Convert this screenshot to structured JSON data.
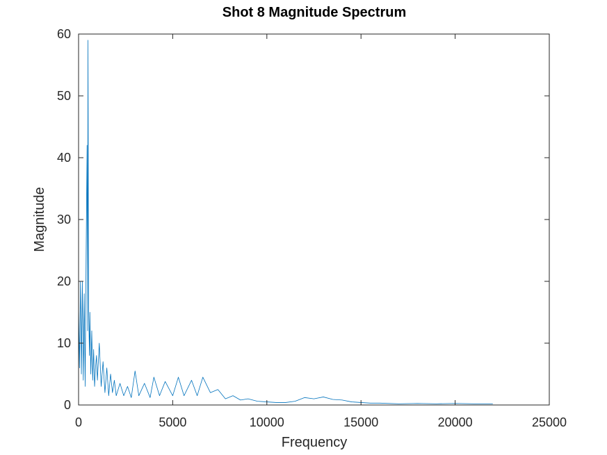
{
  "chart_data": {
    "type": "line",
    "title": "Shot 8 Magnitude Spectrum",
    "xlabel": "Frequency",
    "ylabel": "Magnitude",
    "xlim": [
      0,
      25000
    ],
    "ylim": [
      0,
      60
    ],
    "xticks": [
      0,
      5000,
      10000,
      15000,
      20000,
      25000
    ],
    "yticks": [
      0,
      10,
      20,
      30,
      40,
      50,
      60
    ],
    "grid": false,
    "line_color": "#0072BD",
    "series": [
      {
        "x": [
          0,
          50,
          100,
          150,
          200,
          250,
          300,
          350,
          400,
          450,
          480,
          500,
          520,
          540,
          560,
          580,
          600,
          650,
          700,
          750,
          800,
          850,
          900,
          950,
          1000,
          1100,
          1200,
          1300,
          1400,
          1500,
          1600,
          1700,
          1800,
          1900,
          2000,
          2200,
          2400,
          2600,
          2800,
          3000,
          3200,
          3500,
          3800,
          4000,
          4300,
          4600,
          5000,
          5300,
          5600,
          6000,
          6300,
          6600,
          7000,
          7400,
          7800,
          8200,
          8600,
          9000,
          9500,
          10000,
          10500,
          11000,
          11500,
          12000,
          12500,
          13000,
          13500,
          14000,
          14500,
          15000,
          15500,
          16000,
          17000,
          18000,
          19000,
          20000,
          21000,
          22000
        ],
        "y": [
          16,
          6,
          20,
          5,
          20,
          4,
          18,
          3,
          24,
          42,
          12,
          59,
          32,
          15,
          11,
          8,
          15,
          5,
          12,
          4,
          9,
          3,
          6,
          8,
          4,
          10,
          3,
          7,
          2,
          6,
          1.5,
          5,
          2,
          4,
          1.5,
          3.5,
          1.5,
          3,
          1.2,
          5.5,
          1.5,
          3.5,
          1.2,
          4.5,
          1.5,
          3.8,
          1.5,
          4.5,
          1.5,
          4,
          1.5,
          4.5,
          2,
          2.5,
          1,
          1.5,
          0.8,
          1,
          0.6,
          0.5,
          0.4,
          0.4,
          0.6,
          1.2,
          1,
          1.3,
          0.9,
          0.8,
          0.5,
          0.4,
          0.3,
          0.3,
          0.2,
          0.25,
          0.2,
          0.25,
          0.2,
          0.2
        ]
      }
    ]
  }
}
